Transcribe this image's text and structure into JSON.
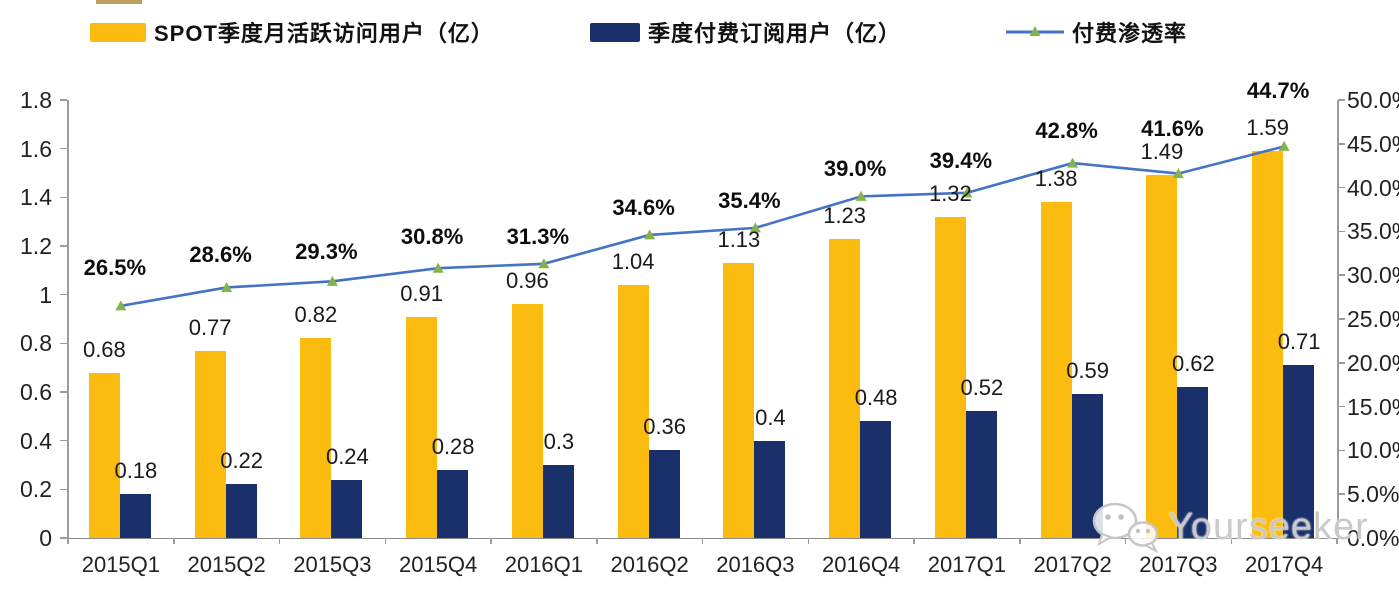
{
  "watermark": {
    "text": "Yourseeker"
  },
  "colors": {
    "mau_bar": "#FBBC0F",
    "subscriber_bar": "#19306B",
    "penetration_line": "#4472C4",
    "marker_green": "#84B24D",
    "axis_line": "#9B9B9B",
    "label_text": "#1A1A1A",
    "watermark_text": "#C9C9C9"
  },
  "chart_data": {
    "type": "bar+line",
    "title": "",
    "categories": [
      "2015Q1",
      "2015Q2",
      "2015Q3",
      "2015Q4",
      "2016Q1",
      "2016Q2",
      "2016Q3",
      "2016Q4",
      "2017Q1",
      "2017Q2",
      "2017Q3",
      "2017Q4"
    ],
    "series": [
      {
        "name": "SPOT季度月活跃访问用户（亿）",
        "type": "bar",
        "axis": "left",
        "color": "#FBBC0F",
        "values": [
          0.68,
          0.77,
          0.82,
          0.91,
          0.96,
          1.04,
          1.13,
          1.23,
          1.32,
          1.38,
          1.49,
          1.59
        ],
        "labels": [
          "0.68",
          "0.77",
          "0.82",
          "0.91",
          "0.96",
          "1.04",
          "1.13",
          "1.23",
          "1.32",
          "1.38",
          "1.49",
          "1.59"
        ]
      },
      {
        "name": "季度付费订阅用户（亿）",
        "type": "bar",
        "axis": "left",
        "color": "#19306B",
        "values": [
          0.18,
          0.22,
          0.24,
          0.28,
          0.3,
          0.36,
          0.4,
          0.48,
          0.52,
          0.59,
          0.62,
          0.71
        ],
        "labels": [
          "0.18",
          "0.22",
          "0.24",
          "0.28",
          "0.3",
          "0.36",
          "0.4",
          "0.48",
          "0.52",
          "0.59",
          "0.62",
          "0.71"
        ]
      },
      {
        "name": "付费渗透率",
        "type": "line",
        "axis": "right",
        "color": "#4472C4",
        "marker": "triangle-up",
        "marker_color": "#84B24D",
        "values": [
          26.5,
          28.6,
          29.3,
          30.8,
          31.3,
          34.6,
          35.4,
          39.0,
          39.4,
          42.8,
          41.6,
          44.7
        ],
        "labels": [
          "26.5%",
          "28.6%",
          "29.3%",
          "30.8%",
          "31.3%",
          "34.6%",
          "35.4%",
          "39.0%",
          "39.4%",
          "42.8%",
          "41.6%",
          "44.7%"
        ]
      }
    ],
    "left_axis": {
      "min": 0,
      "max": 1.8,
      "ticks": [
        "0",
        "0.2",
        "0.4",
        "0.6",
        "0.8",
        "1",
        "1.2",
        "1.4",
        "1.6",
        "1.8"
      ]
    },
    "right_axis": {
      "min": 0,
      "max": 50,
      "ticks": [
        "0.0%",
        "5.0%",
        "10.0%",
        "15.0%",
        "20.0%",
        "25.0%",
        "30.0%",
        "35.0%",
        "40.0%",
        "45.0%",
        "50.0%"
      ]
    },
    "legend_position": "top",
    "grid": false,
    "layout_hints": {
      "pct_label_dy": [
        -11,
        -5,
        -2,
        -4,
        0,
        0,
        0,
        0,
        -5,
        -5,
        -18,
        -28
      ]
    }
  }
}
